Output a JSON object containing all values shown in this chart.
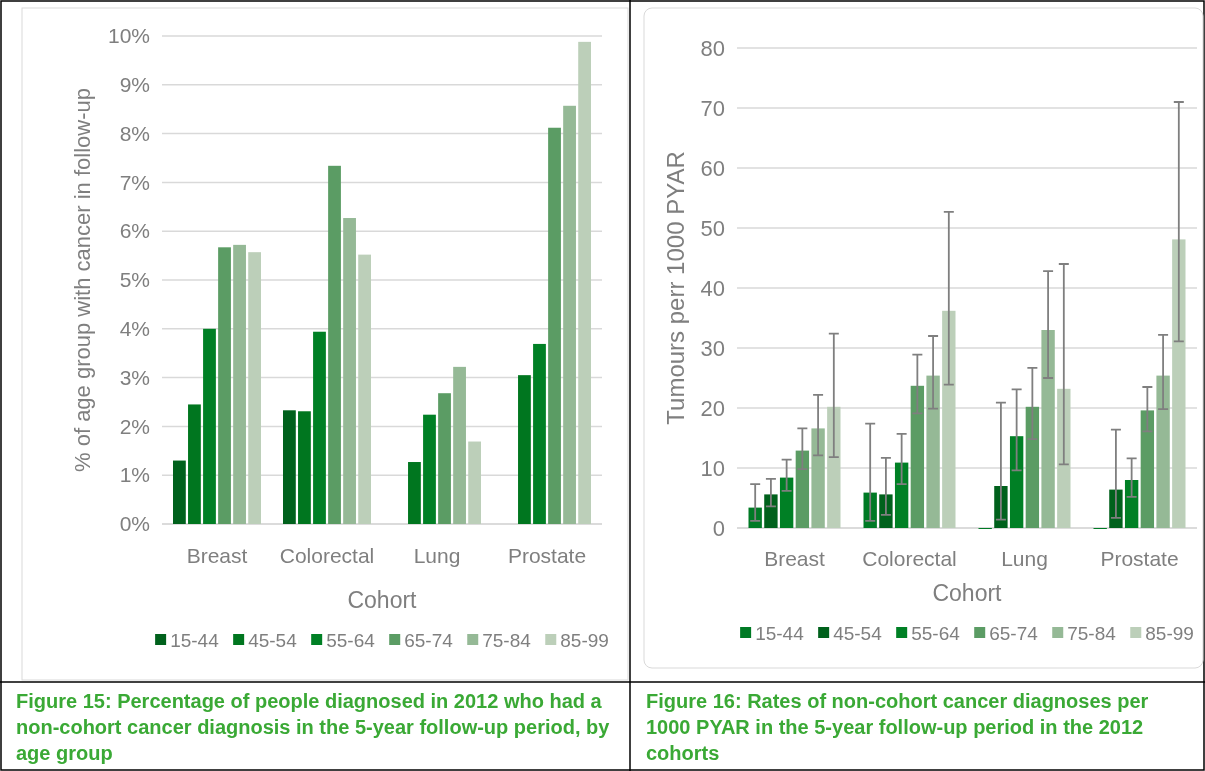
{
  "chart_data": [
    {
      "type": "bar",
      "title": "Figure 15:  Percentage of people diagnosed in 2012 who had a non-cohort cancer diagnosis in the 5-year follow-up period, by age group",
      "xlabel": "Cohort",
      "ylabel": "% of age group with cancer in follow-up",
      "categories": [
        "Breast",
        "Colorectal",
        "Lung",
        "Prostate"
      ],
      "ylim": [
        0,
        10
      ],
      "yticks": [
        {
          "value": 0,
          "label": "0%"
        },
        {
          "value": 1,
          "label": "1%"
        },
        {
          "value": 2,
          "label": "2%"
        },
        {
          "value": 3,
          "label": "3%"
        },
        {
          "value": 4,
          "label": "4%"
        },
        {
          "value": 5,
          "label": "5%"
        },
        {
          "value": 6,
          "label": "6%"
        },
        {
          "value": 7,
          "label": "7%"
        },
        {
          "value": 8,
          "label": "8%"
        },
        {
          "value": 9,
          "label": "9%"
        },
        {
          "value": 10,
          "label": "10%"
        }
      ],
      "grid": "y",
      "legend": "bottom",
      "series": [
        {
          "name": "15-44",
          "color": "#00611c",
          "values": [
            1.3,
            2.33,
            null,
            null
          ]
        },
        {
          "name": "45-54",
          "color": "#00761f",
          "values": [
            2.45,
            2.31,
            1.27,
            3.05
          ]
        },
        {
          "name": "55-64",
          "color": "#008025",
          "values": [
            4.0,
            3.94,
            2.24,
            3.69
          ]
        },
        {
          "name": "65-74",
          "color": "#5b9c64",
          "values": [
            5.67,
            7.34,
            2.68,
            8.12
          ]
        },
        {
          "name": "75-84",
          "color": "#95b996",
          "values": [
            5.72,
            6.27,
            3.22,
            8.57
          ]
        },
        {
          "name": "85-99",
          "color": "#bccfb9",
          "values": [
            5.57,
            5.52,
            1.69,
            9.88
          ]
        }
      ]
    },
    {
      "type": "bar",
      "title": "Figure 16:  Rates of non-cohort cancer diagnoses per 1000 PYAR in the 5-year follow-up period in the 2012 cohorts",
      "xlabel": "Cohort",
      "ylabel": "Tumours perr 1000 PYAR",
      "categories": [
        "Breast",
        "Colorectal",
        "Lung",
        "Prostate"
      ],
      "ylim": [
        0,
        80
      ],
      "yticks": [
        0,
        10,
        20,
        30,
        40,
        50,
        60,
        70,
        80
      ],
      "grid": "y",
      "legend": "bottom",
      "series": [
        {
          "name": "15-44",
          "color": "#007a25",
          "values": [
            3.4,
            5.9,
            0,
            0
          ],
          "errors": [
            [
              1.2,
              7.3
            ],
            [
              1.2,
              17.4
            ],
            null,
            null
          ]
        },
        {
          "name": "45-54",
          "color": "#00611c",
          "values": [
            5.6,
            5.6,
            7.0,
            6.4
          ],
          "errors": [
            [
              3.6,
              8.2
            ],
            [
              2.2,
              11.7
            ],
            [
              1.4,
              20.9
            ],
            [
              1.7,
              16.4
            ]
          ]
        },
        {
          "name": "55-64",
          "color": "#008025",
          "values": [
            8.4,
            10.9,
            15.3,
            8.0
          ],
          "errors": [
            [
              6.2,
              11.4
            ],
            [
              7.3,
              15.7
            ],
            [
              9.6,
              23.1
            ],
            [
              5.2,
              11.6
            ]
          ]
        },
        {
          "name": "65-74",
          "color": "#5b9c64",
          "values": [
            12.9,
            23.7,
            20.2,
            19.6
          ],
          "errors": [
            [
              9.8,
              16.6
            ],
            [
              19.1,
              28.9
            ],
            [
              14.8,
              26.7
            ],
            [
              16.1,
              23.5
            ]
          ]
        },
        {
          "name": "75-84",
          "color": "#95b996",
          "values": [
            16.6,
            25.4,
            33.0,
            25.4
          ],
          "errors": [
            [
              12.1,
              22.2
            ],
            [
              19.9,
              32.0
            ],
            [
              25.0,
              42.8
            ],
            [
              19.8,
              32.2
            ]
          ]
        },
        {
          "name": "85-99",
          "color": "#bccfb9",
          "values": [
            20.2,
            36.2,
            23.2,
            48.1
          ],
          "errors": [
            [
              11.8,
              32.4
            ],
            [
              23.9,
              52.7
            ],
            [
              10.6,
              44.0
            ],
            [
              31.1,
              71.0
            ]
          ]
        }
      ]
    }
  ]
}
